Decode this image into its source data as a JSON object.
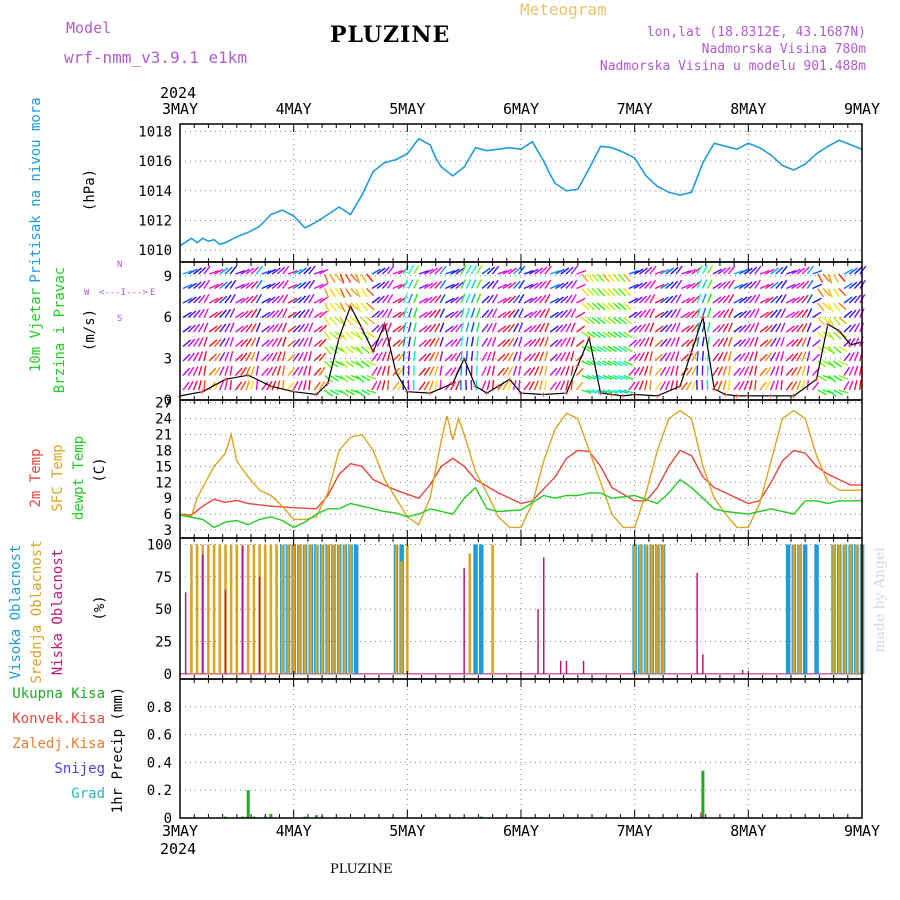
{
  "header": {
    "model_label": "Model",
    "model_name": "wrf-nmm_v3.9.1 e1km",
    "station": "PLUZINE",
    "meteogram": "Meteogram",
    "lonlat": "lon,lat (18.8312E, 43.1687N)",
    "elevation": "Nadmorska Visina 780m",
    "model_elevation": "Nadmorska Visina u modelu 901.488m",
    "year_top": "2024",
    "year_bottom": "2024",
    "footer": "PLUZINE",
    "watermark": "made by Angel"
  },
  "colors": {
    "pressure": "#1e9bdc",
    "temp2m": "#e8453c",
    "sfc": "#daa520",
    "dewpt": "#22cc22",
    "cloud_high": "#1e9bdc",
    "cloud_mid": "#daa520",
    "cloud_low": "#c0147c",
    "precip_total": "#22aa22",
    "precip_conv": "#e8453c",
    "precip_frozen": "#e87d2c",
    "snow": "#4444dd",
    "graupel": "#22bbbb"
  },
  "chart_data": [
    {
      "type": "line",
      "name": "pressure",
      "ylabel": [
        "Pritisak na nivou mora",
        "(hPa)"
      ],
      "x_categories": [
        "3MAY",
        "4MAY",
        "5MAY",
        "6MAY",
        "7MAY",
        "8MAY",
        "9MAY"
      ],
      "ylim": [
        1009.2,
        1018.5
      ],
      "yticks": [
        1010,
        1012,
        1014,
        1016,
        1018
      ],
      "grid": true,
      "series": [
        {
          "x": [
            0,
            0.1,
            0.15,
            0.2,
            0.25,
            0.3,
            0.35,
            0.4,
            0.45,
            0.5,
            0.6,
            0.7,
            0.8,
            0.9,
            1.0,
            1.1,
            1.2,
            1.3,
            1.4,
            1.5,
            1.6,
            1.7,
            1.8,
            1.9,
            2.0,
            2.1,
            2.2,
            2.25,
            2.3,
            2.4,
            2.5,
            2.6,
            2.7,
            2.8,
            2.9,
            3.0,
            3.1,
            3.2,
            3.25,
            3.3,
            3.4,
            3.5,
            3.6,
            3.7,
            3.8,
            3.9,
            4.0,
            4.1,
            4.2,
            4.3,
            4.4,
            4.5,
            4.6,
            4.7,
            4.8,
            4.9,
            5.0,
            5.1,
            5.2,
            5.3,
            5.4,
            5.5,
            5.6,
            5.7,
            5.8,
            5.9,
            6.0
          ],
          "y": [
            1010.3,
            1010.8,
            1010.5,
            1010.8,
            1010.6,
            1010.7,
            1010.4,
            1010.5,
            1010.7,
            1010.9,
            1011.2,
            1011.6,
            1012.4,
            1012.7,
            1012.3,
            1011.5,
            1011.9,
            1012.4,
            1012.9,
            1012.4,
            1013.7,
            1015.3,
            1015.9,
            1016.1,
            1016.5,
            1017.5,
            1017.1,
            1016.2,
            1015.6,
            1015.0,
            1015.6,
            1016.9,
            1016.7,
            1016.8,
            1016.9,
            1016.8,
            1017.3,
            1016.0,
            1015.2,
            1014.5,
            1014.0,
            1014.1,
            1015.5,
            1017.0,
            1016.9,
            1016.6,
            1016.2,
            1015.0,
            1014.3,
            1013.9,
            1013.7,
            1013.9,
            1015.9,
            1017.2,
            1017.0,
            1016.8,
            1017.2,
            1016.9,
            1016.4,
            1015.7,
            1015.4,
            1015.8,
            1016.5,
            1017.0,
            1017.4,
            1017.1,
            1016.8
          ]
        }
      ]
    },
    {
      "type": "line",
      "name": "wind",
      "ylabel": [
        "10m Vjetar",
        "Brzina i Pravac",
        "(m/s)"
      ],
      "compass": [
        "N",
        "W",
        "E",
        "S",
        "<---I--->"
      ],
      "ylim": [
        0,
        10
      ],
      "yticks": [
        0,
        3,
        6,
        9
      ],
      "grid": true,
      "series": [
        {
          "x": [
            0,
            0.2,
            0.4,
            0.6,
            0.8,
            1.0,
            1.2,
            1.3,
            1.4,
            1.5,
            1.6,
            1.7,
            1.8,
            1.9,
            2.0,
            2.2,
            2.4,
            2.5,
            2.6,
            2.7,
            2.8,
            2.9,
            3.0,
            3.2,
            3.4,
            3.5,
            3.6,
            3.7,
            3.8,
            3.9,
            4.0,
            4.2,
            4.4,
            4.5,
            4.6,
            4.7,
            4.8,
            4.9,
            5.0,
            5.2,
            5.4,
            5.6,
            5.7,
            5.8,
            5.9,
            6.0
          ],
          "y": [
            0.3,
            0.6,
            1.5,
            1.8,
            1.0,
            0.6,
            0.4,
            1.2,
            4.5,
            6.8,
            5.2,
            3.5,
            5.5,
            2.0,
            0.6,
            0.5,
            1.2,
            3.0,
            1.0,
            0.5,
            1.0,
            1.5,
            0.5,
            0.4,
            0.5,
            2.5,
            4.5,
            0.5,
            0.4,
            0.3,
            0.4,
            0.3,
            1.0,
            3.5,
            6.0,
            0.8,
            0.4,
            0.3,
            0.3,
            0.3,
            0.3,
            1.5,
            5.5,
            5.0,
            4.0,
            4.2
          ]
        }
      ]
    },
    {
      "type": "line",
      "name": "temperature",
      "ylabel": [
        "2m Temp",
        "SFC Temp",
        "dewpt Temp",
        "(C)"
      ],
      "ylim": [
        1.5,
        27.5
      ],
      "yticks": [
        3,
        6,
        9,
        12,
        15,
        18,
        21,
        24,
        27
      ],
      "grid": true,
      "series": [
        {
          "name": "2m Temp",
          "x": [
            0,
            0.1,
            0.2,
            0.3,
            0.4,
            0.5,
            0.6,
            0.8,
            1.0,
            1.2,
            1.3,
            1.4,
            1.5,
            1.6,
            1.7,
            1.9,
            2.1,
            2.2,
            2.3,
            2.4,
            2.5,
            2.6,
            2.8,
            3.0,
            3.1,
            3.3,
            3.4,
            3.5,
            3.6,
            3.7,
            3.8,
            4.0,
            4.1,
            4.2,
            4.3,
            4.4,
            4.5,
            4.6,
            4.7,
            4.8,
            5.0,
            5.1,
            5.2,
            5.3,
            5.4,
            5.5,
            5.6,
            5.7,
            5.8,
            5.9,
            6.0
          ],
          "y": [
            6,
            5.8,
            7.5,
            8.8,
            8.2,
            8.6,
            8.0,
            7.5,
            7.2,
            7.0,
            9.5,
            13.5,
            15.5,
            15.0,
            12.5,
            10.5,
            9.0,
            11.5,
            15.0,
            16.5,
            15.0,
            12.5,
            10.0,
            8.0,
            8.5,
            13.0,
            16.5,
            18.0,
            17.8,
            15.0,
            11.0,
            8.5,
            8.5,
            11.0,
            15.0,
            18.0,
            17.0,
            13.0,
            11.0,
            10.0,
            8.0,
            8.5,
            12.0,
            16.0,
            18.0,
            17.5,
            15.0,
            13.5,
            12.5,
            11.5,
            11.5
          ]
        },
        {
          "name": "SFC Temp",
          "x": [
            0,
            0.1,
            0.15,
            0.2,
            0.3,
            0.4,
            0.45,
            0.5,
            0.55,
            0.6,
            0.7,
            0.8,
            0.9,
            1.0,
            1.1,
            1.2,
            1.3,
            1.4,
            1.5,
            1.6,
            1.7,
            1.8,
            1.9,
            2.0,
            2.1,
            2.2,
            2.3,
            2.35,
            2.4,
            2.45,
            2.5,
            2.6,
            2.7,
            2.8,
            2.9,
            3.0,
            3.1,
            3.2,
            3.3,
            3.4,
            3.5,
            3.6,
            3.7,
            3.8,
            3.9,
            4.0,
            4.1,
            4.2,
            4.3,
            4.4,
            4.5,
            4.6,
            4.7,
            4.8,
            4.9,
            5.0,
            5.1,
            5.2,
            5.3,
            5.4,
            5.5,
            5.6,
            5.7,
            5.8,
            5.9,
            6.0
          ],
          "y": [
            6,
            5.5,
            9,
            11,
            15,
            17.5,
            21,
            16,
            14.5,
            13,
            10.5,
            9.5,
            7.5,
            5,
            5,
            5.5,
            10,
            18,
            20.5,
            21,
            18,
            12.5,
            9,
            5.5,
            4,
            9,
            20,
            24.5,
            20,
            24,
            21,
            14,
            10,
            5.5,
            3.5,
            3.5,
            8,
            16,
            22,
            25,
            24,
            18,
            12,
            6,
            3.5,
            3.5,
            10,
            18,
            24,
            25.5,
            24,
            15,
            9,
            6,
            3.5,
            3.5,
            8,
            16,
            24,
            25.5,
            24,
            17,
            12,
            10.5,
            10.5,
            10.5
          ]
        },
        {
          "name": "dewpt Temp",
          "x": [
            0,
            0.2,
            0.3,
            0.4,
            0.5,
            0.6,
            0.7,
            0.8,
            0.9,
            1.0,
            1.1,
            1.2,
            1.3,
            1.4,
            1.5,
            1.6,
            1.8,
            1.9,
            2.0,
            2.1,
            2.2,
            2.4,
            2.5,
            2.6,
            2.7,
            2.8,
            3.0,
            3.2,
            3.3,
            3.4,
            3.5,
            3.6,
            3.7,
            3.8,
            4.0,
            4.2,
            4.3,
            4.4,
            4.5,
            4.6,
            4.7,
            4.8,
            5.0,
            5.2,
            5.4,
            5.5,
            5.6,
            5.7,
            5.8,
            6.0
          ],
          "y": [
            5.8,
            5.0,
            3.5,
            4.5,
            4.8,
            4.0,
            5.0,
            5.5,
            4.8,
            3.5,
            4.5,
            6.0,
            7.0,
            7.0,
            8.0,
            7.5,
            6.5,
            6.2,
            5.5,
            6.0,
            7.0,
            6.0,
            9.0,
            11.0,
            7.0,
            6.5,
            6.8,
            9.5,
            9.0,
            9.5,
            9.5,
            10.0,
            10.0,
            9.0,
            9.5,
            8.0,
            10.0,
            12.5,
            11.0,
            9.0,
            7.0,
            6.5,
            6.0,
            7.0,
            6.0,
            8.5,
            8.5,
            8.0,
            8.5,
            8.5
          ]
        }
      ]
    },
    {
      "type": "bar",
      "name": "cloud_cover",
      "ylabel": [
        "Visoka Oblacnost",
        "Srednja Oblacnost",
        "Niska Oblacnost",
        "(%)"
      ],
      "ylim": [
        -4,
        105
      ],
      "yticks": [
        0,
        25,
        50,
        75,
        100
      ],
      "grid": true,
      "series": [
        {
          "name": "Visoka Oblacnost",
          "x": [
            0.9,
            0.95,
            1.0,
            1.05,
            1.1,
            1.15,
            1.2,
            1.25,
            1.3,
            1.35,
            1.4,
            1.45,
            1.5,
            1.55,
            1.9,
            1.95,
            2.6,
            2.65,
            4.0,
            4.05,
            4.1,
            4.15,
            4.2,
            4.25,
            5.35,
            5.4,
            5.45,
            5.5,
            5.6,
            5.75,
            5.8,
            5.85,
            5.9,
            5.95,
            6.0
          ],
          "y": [
            100,
            100,
            100,
            100,
            100,
            100,
            100,
            100,
            100,
            100,
            100,
            100,
            100,
            100,
            100,
            100,
            100,
            100,
            100,
            100,
            100,
            100,
            100,
            100,
            100,
            100,
            100,
            100,
            100,
            100,
            100,
            100,
            100,
            100,
            100
          ]
        },
        {
          "name": "Srednja Oblacnost",
          "x": [
            0.1,
            0.15,
            0.2,
            0.25,
            0.3,
            0.35,
            0.4,
            0.45,
            0.5,
            0.55,
            0.6,
            0.65,
            0.7,
            0.75,
            0.8,
            0.85,
            0.9,
            0.95,
            1.0,
            1.05,
            1.1,
            1.15,
            1.2,
            1.25,
            1.3,
            1.35,
            1.4,
            1.45,
            1.5,
            1.9,
            1.95,
            2.0,
            2.55,
            2.75,
            4.0,
            4.05,
            4.1,
            4.15,
            4.2,
            4.25,
            5.4,
            5.45,
            5.75,
            5.8,
            5.85,
            5.9,
            5.95,
            6.0
          ],
          "y": [
            100,
            100,
            100,
            100,
            100,
            100,
            100,
            100,
            100,
            100,
            100,
            100,
            100,
            100,
            100,
            100,
            100,
            100,
            100,
            100,
            100,
            100,
            100,
            100,
            100,
            100,
            100,
            100,
            100,
            100,
            87,
            100,
            93,
            100,
            100,
            100,
            100,
            100,
            100,
            100,
            100,
            100,
            100,
            100,
            100,
            100,
            100,
            100
          ]
        },
        {
          "name": "Niska Oblacnost",
          "x": [
            0.05,
            0.2,
            0.4,
            0.55,
            0.7,
            2.5,
            3.15,
            3.2,
            3.35,
            3.4,
            3.55,
            4.55,
            4.6,
            4.95,
            5.0
          ],
          "y": [
            63,
            92,
            65,
            99,
            75,
            82,
            50,
            90,
            10,
            10,
            10,
            78,
            15,
            3,
            0
          ]
        }
      ]
    },
    {
      "type": "bar",
      "name": "precipitation",
      "ylabel": [
        "1hr Precip (mm)"
      ],
      "legend": [
        "Ukupna Kisa",
        "Konvek.Kisa",
        "Zaledj.Kisa",
        "Snijeg",
        "Grad"
      ],
      "xlabel_categories": [
        "3MAY",
        "4MAY",
        "5MAY",
        "6MAY",
        "7MAY",
        "8MAY",
        "9MAY"
      ],
      "ylim": [
        0,
        1.0
      ],
      "yticks": [
        0,
        0.2,
        0.4,
        0.6,
        0.8
      ],
      "grid": true,
      "series": [
        {
          "name": "Ukupna Kisa",
          "x": [
            0.4,
            0.55,
            0.6,
            0.65,
            0.75,
            0.8,
            1.1,
            1.2,
            1.25,
            2.65,
            4.6
          ],
          "y": [
            0.01,
            0.01,
            0.2,
            0.01,
            0.01,
            0.03,
            0.01,
            0.02,
            0.01,
            0.01,
            0.34
          ]
        },
        {
          "name": "Konvek.Kisa",
          "x": [
            0.6,
            4.6
          ],
          "y": [
            0.01,
            0.04
          ]
        }
      ]
    }
  ]
}
